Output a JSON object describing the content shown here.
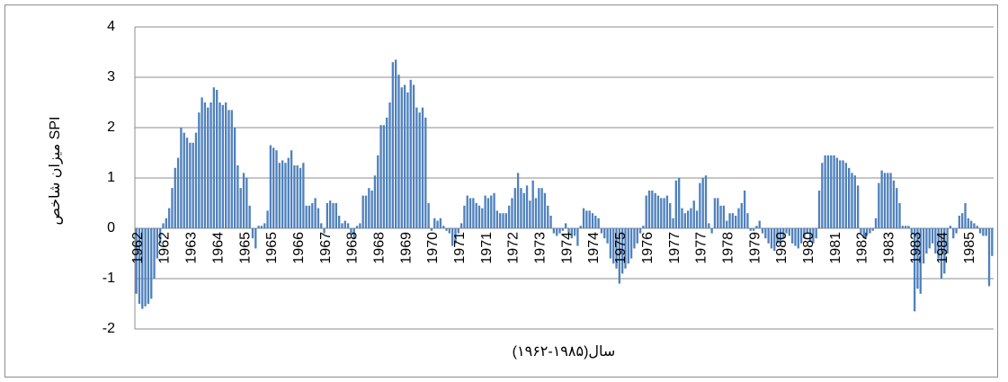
{
  "chart_data": {
    "type": "bar",
    "y_label": "میزان شاخص SPI",
    "x_label": "سال(۱۹۸۵-۱۹۶۲)",
    "color": "#4f81bd",
    "ylim": [
      -2,
      4
    ],
    "yticks": [
      -2,
      -1,
      0,
      1,
      2,
      3,
      4
    ],
    "grid": true,
    "categories": [
      "1962",
      null,
      null,
      null,
      null,
      null,
      null,
      null,
      null,
      "1962",
      null,
      null,
      null,
      null,
      null,
      null,
      null,
      null,
      "1963",
      null,
      null,
      null,
      null,
      null,
      null,
      null,
      null,
      "1964",
      null,
      null,
      null,
      null,
      null,
      null,
      null,
      null,
      "1965",
      null,
      null,
      null,
      null,
      null,
      null,
      null,
      null,
      "1965",
      null,
      null,
      null,
      null,
      null,
      null,
      null,
      null,
      "1966",
      null,
      null,
      null,
      null,
      null,
      null,
      null,
      null,
      "1967",
      null,
      null,
      null,
      null,
      null,
      null,
      null,
      null,
      "1968",
      null,
      null,
      null,
      null,
      null,
      null,
      null,
      null,
      "1968",
      null,
      null,
      null,
      null,
      null,
      null,
      null,
      null,
      "1969",
      null,
      null,
      null,
      null,
      null,
      null,
      null,
      null,
      "1970",
      null,
      null,
      null,
      null,
      null,
      null,
      null,
      null,
      "1971",
      null,
      null,
      null,
      null,
      null,
      null,
      null,
      null,
      "1971",
      null,
      null,
      null,
      null,
      null,
      null,
      null,
      null,
      "1972",
      null,
      null,
      null,
      null,
      null,
      null,
      null,
      null,
      "1973",
      null,
      null,
      null,
      null,
      null,
      null,
      null,
      null,
      "1974",
      null,
      null,
      null,
      null,
      null,
      null,
      null,
      null,
      "1974",
      null,
      null,
      null,
      null,
      null,
      null,
      null,
      null,
      "1975",
      null,
      null,
      null,
      null,
      null,
      null,
      null,
      null,
      "1976",
      null,
      null,
      null,
      null,
      null,
      null,
      null,
      null,
      "1977",
      null,
      null,
      null,
      null,
      null,
      null,
      null,
      null,
      "1977",
      null,
      null,
      null,
      null,
      null,
      null,
      null,
      null,
      "1978",
      null,
      null,
      null,
      null,
      null,
      null,
      null,
      null,
      "1979",
      null,
      null,
      null,
      null,
      null,
      null,
      null,
      null,
      "1980",
      null,
      null,
      null,
      null,
      null,
      null,
      null,
      null,
      "1980",
      null,
      null,
      null,
      null,
      null,
      null,
      null,
      null,
      "1981",
      null,
      null,
      null,
      null,
      null,
      null,
      null,
      null,
      "1982",
      null,
      null,
      null,
      null,
      null,
      null,
      null,
      null,
      "1983",
      null,
      null,
      null,
      null,
      null,
      null,
      null,
      null,
      "1983",
      null,
      null,
      null,
      null,
      null,
      null,
      null,
      null,
      "1984",
      null,
      null,
      null,
      null,
      null,
      null,
      null,
      null,
      "1985",
      null,
      null,
      null,
      null,
      null,
      null,
      null,
      null
    ],
    "values": [
      -1.3,
      -1.5,
      -1.6,
      -1.55,
      -1.5,
      -1.4,
      -1.0,
      -0.6,
      -0.3,
      0.1,
      0.2,
      0.4,
      0.8,
      1.2,
      1.4,
      2.0,
      1.9,
      1.8,
      1.7,
      1.7,
      1.9,
      2.3,
      2.6,
      2.5,
      2.4,
      2.5,
      2.8,
      2.75,
      2.5,
      2.45,
      2.5,
      2.35,
      2.35,
      2.0,
      1.25,
      0.8,
      1.1,
      1.0,
      0.45,
      -0.2,
      -0.4,
      0.05,
      0.05,
      0.1,
      0.35,
      1.65,
      1.6,
      1.55,
      1.3,
      1.35,
      1.3,
      1.4,
      1.55,
      1.25,
      1.25,
      1.2,
      1.3,
      0.45,
      0.45,
      0.5,
      0.6,
      0.4,
      0.1,
      -0.1,
      0.5,
      0.55,
      0.5,
      0.5,
      0.25,
      0.1,
      0.15,
      0.1,
      -0.1,
      -0.2,
      0.05,
      0.1,
      0.65,
      0.65,
      0.8,
      0.75,
      1.05,
      1.45,
      2.05,
      2.05,
      2.2,
      2.5,
      3.3,
      3.35,
      3.05,
      2.8,
      2.85,
      2.7,
      2.95,
      2.85,
      2.4,
      2.3,
      2.4,
      2.2,
      0.5,
      -0.05,
      0.2,
      0.15,
      0.2,
      0.05,
      -0.05,
      -0.1,
      -0.35,
      -0.3,
      -0.1,
      0.1,
      0.45,
      0.65,
      0.6,
      0.6,
      0.5,
      0.45,
      0.4,
      0.65,
      0.6,
      0.65,
      0.7,
      0.35,
      0.3,
      0.3,
      0.3,
      0.45,
      0.6,
      0.8,
      1.1,
      0.8,
      0.7,
      0.85,
      0.55,
      0.95,
      0.6,
      0.8,
      0.8,
      0.7,
      0.45,
      0.25,
      -0.1,
      -0.15,
      -0.1,
      -0.05,
      0.1,
      -0.1,
      -0.2,
      -0.15,
      -0.35,
      0.05,
      0.4,
      0.35,
      0.35,
      0.3,
      0.25,
      0.2,
      -0.1,
      -0.2,
      -0.3,
      -0.6,
      -0.7,
      -0.8,
      -1.1,
      -0.9,
      -0.8,
      -0.7,
      -0.6,
      -0.4,
      -0.3,
      -0.1,
      0.05,
      0.65,
      0.75,
      0.75,
      0.7,
      0.65,
      0.6,
      0.6,
      0.65,
      0.5,
      0.2,
      0.95,
      1.0,
      0.4,
      0.3,
      0.35,
      0.4,
      0.55,
      0.35,
      0.9,
      1.0,
      1.05,
      0.1,
      -0.1,
      0.6,
      0.6,
      0.45,
      0.45,
      0.15,
      0.3,
      0.3,
      0.25,
      0.4,
      0.5,
      0.75,
      0.3,
      -0.05,
      -0.05,
      0.05,
      0.15,
      -0.1,
      -0.2,
      -0.3,
      -0.4,
      -0.45,
      -0.3,
      -0.3,
      -0.2,
      -0.1,
      -0.15,
      -0.3,
      -0.35,
      -0.4,
      -0.3,
      -0.2,
      -0.1,
      -0.25,
      -0.3,
      -0.2,
      0.75,
      1.3,
      1.45,
      1.45,
      1.45,
      1.45,
      1.4,
      1.35,
      1.35,
      1.3,
      1.2,
      1.1,
      1.05,
      0.85,
      -0.1,
      -0.2,
      -0.15,
      -0.1,
      -0.05,
      0.2,
      0.9,
      1.15,
      1.1,
      1.1,
      1.1,
      0.95,
      0.8,
      0.5,
      0.05,
      0.05,
      0.05,
      -0.1,
      -1.65,
      -1.2,
      -1.3,
      -0.7,
      -0.5,
      -0.4,
      -0.3,
      -0.5,
      -0.6,
      -1.0,
      -0.9,
      -0.5,
      0.05,
      -0.2,
      -0.1,
      0.25,
      0.3,
      0.5,
      0.2,
      0.15,
      0.1,
      0.05,
      -0.1,
      -0.15,
      -0.15,
      -1.15,
      -0.55
    ]
  }
}
